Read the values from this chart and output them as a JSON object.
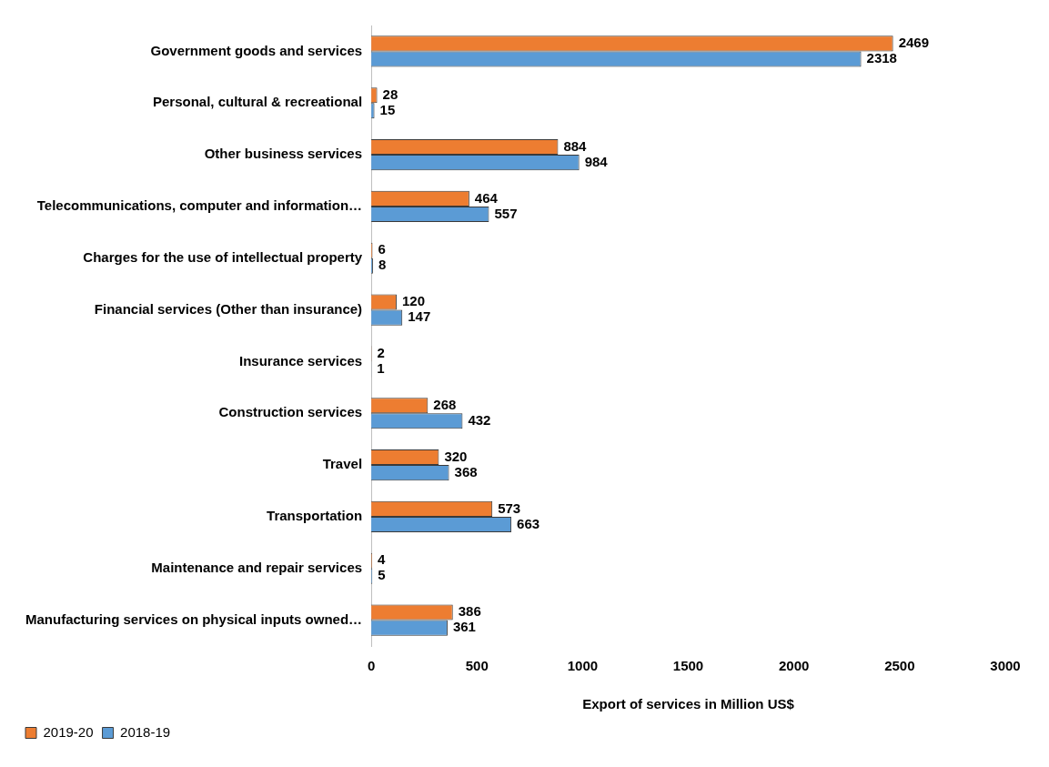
{
  "chart_data": {
    "type": "bar",
    "orientation": "horizontal",
    "xlabel": "Export of services in Million US$",
    "categories": [
      "Government goods and services",
      "Personal, cultural & recreational",
      "Other business services",
      "Telecommunications, computer and information…",
      "Charges for the use of intellectual property",
      "Financial services (Other than insurance)",
      "Insurance services",
      "Construction services",
      "Travel",
      "Transportation",
      "Maintenance and repair services",
      "Manufacturing services on physical inputs owned…"
    ],
    "series": [
      {
        "name": "2019-20",
        "color": "#ed7d31",
        "values": [
          2469,
          28,
          884,
          464,
          6,
          120,
          2,
          268,
          320,
          573,
          4,
          386
        ]
      },
      {
        "name": "2018-19",
        "color": "#5b9bd5",
        "values": [
          2318,
          15,
          984,
          557,
          8,
          147,
          1,
          432,
          368,
          663,
          5,
          361
        ]
      }
    ],
    "xlim": [
      0,
      3000
    ],
    "xticks": [
      0,
      500,
      1000,
      1500,
      2000,
      2500,
      3000
    ],
    "data_labels": true,
    "grid": false,
    "legend": "bottom left"
  }
}
